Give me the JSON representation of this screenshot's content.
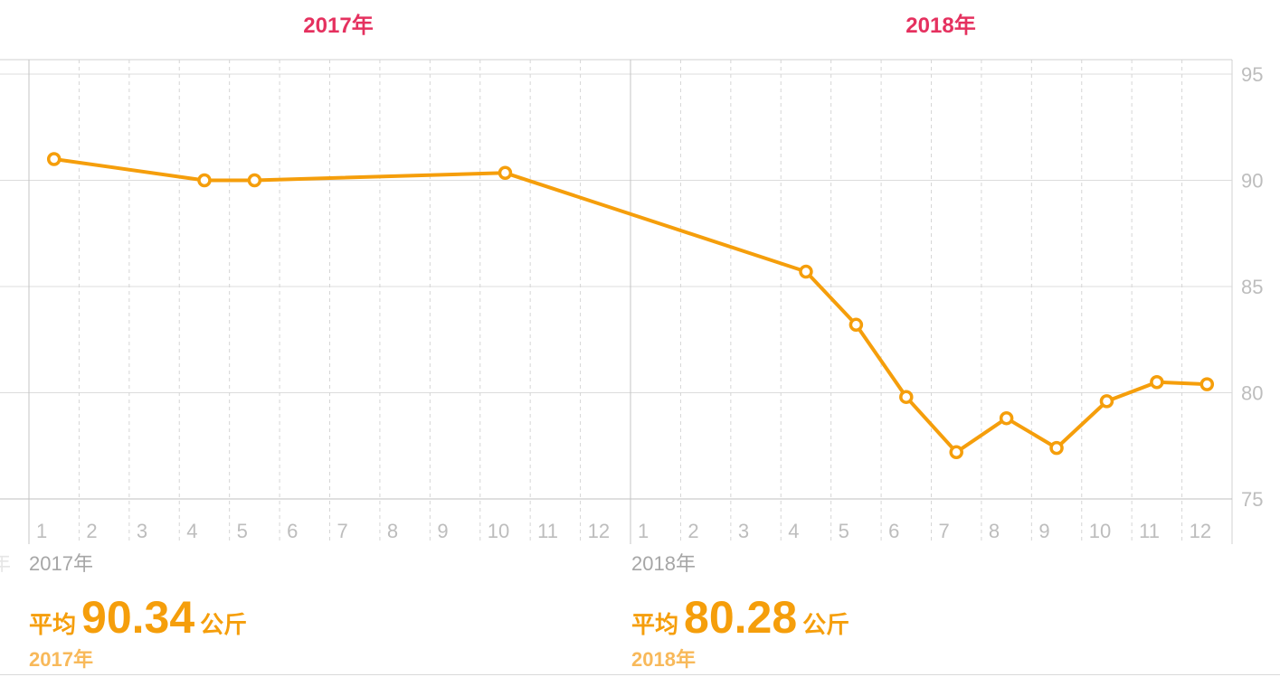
{
  "headers": {
    "year_2017": "2017年",
    "year_2018": "2018年"
  },
  "edge_fragment": "年",
  "summaries": [
    {
      "year_caption": "2017年",
      "avg_label": "平均",
      "avg_value": "90.34",
      "avg_unit": "公斤",
      "avg_year": "2017年"
    },
    {
      "year_caption": "2018年",
      "avg_label": "平均",
      "avg_value": "80.28",
      "avg_unit": "公斤",
      "avg_year": "2018年"
    }
  ],
  "chart_data": {
    "type": "line",
    "title": "",
    "xlabel": "",
    "ylabel": "",
    "ylim": [
      75,
      95
    ],
    "yticks": [
      75,
      80,
      85,
      90,
      95
    ],
    "x_tick_labels": [
      "1",
      "2",
      "3",
      "4",
      "5",
      "6",
      "7",
      "8",
      "9",
      "10",
      "11",
      "12",
      "1",
      "2",
      "3",
      "4",
      "5",
      "6",
      "7",
      "8",
      "9",
      "10",
      "11",
      "12"
    ],
    "grid": true,
    "color": "#f59e0b",
    "series": [
      {
        "x": [
          "2017-01",
          "2017-04",
          "2017-05",
          "2017-10",
          "2018-04",
          "2018-05",
          "2018-06",
          "2018-07",
          "2018-08",
          "2018-09",
          "2018-10",
          "2018-11",
          "2018-12"
        ],
        "values": [
          91.0,
          90.0,
          90.0,
          90.35,
          85.7,
          83.2,
          79.8,
          77.2,
          78.8,
          77.4,
          79.6,
          80.5,
          80.4
        ]
      }
    ]
  }
}
